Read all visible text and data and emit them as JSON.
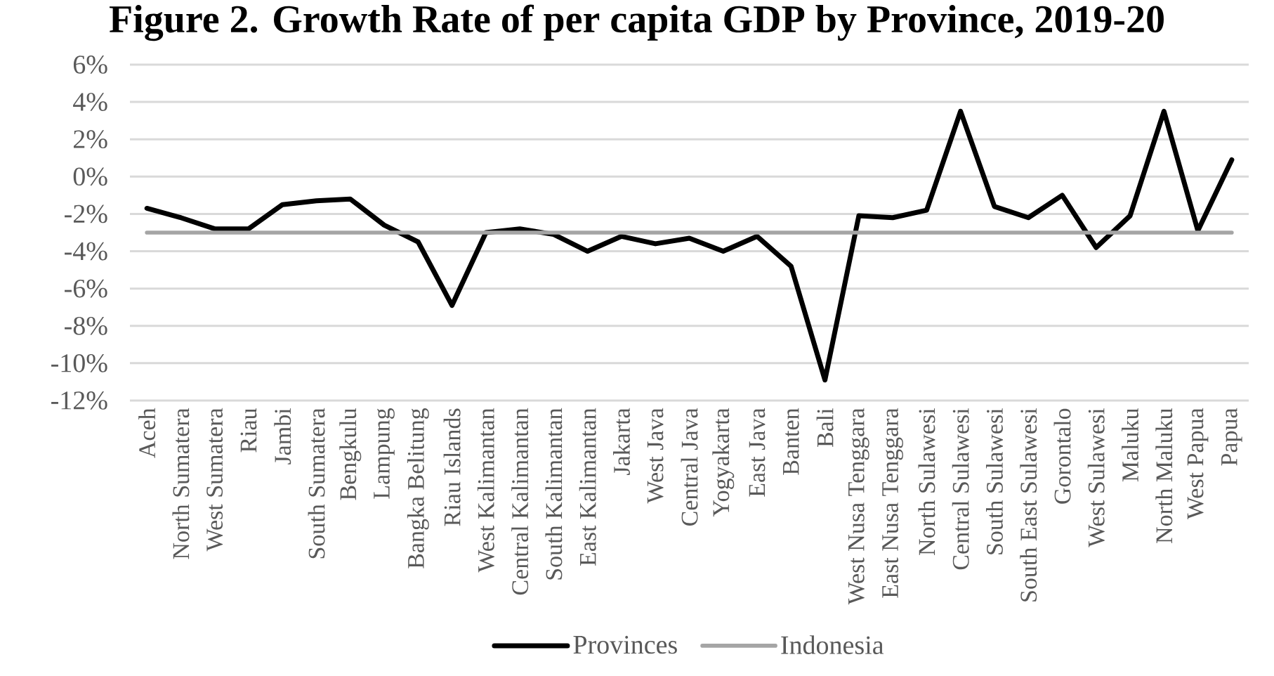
{
  "chart_data": {
    "type": "line",
    "title": "Figure 2. Growth Rate of per capita GDP by Province, 2019-20",
    "categories": [
      "Aceh",
      "North Sumatera",
      "West Sumatera",
      "Riau",
      "Jambi",
      "South Sumatera",
      "Bengkulu",
      "Lampung",
      "Bangka Belitung",
      "Riau Islands",
      "West Kalimantan",
      "Central Kalimantan",
      "South Kalimantan",
      "East Kalimantan",
      "Jakarta",
      "West Java",
      "Central Java",
      "Yogyakarta",
      "East Java",
      "Banten",
      "Bali",
      "West Nusa Tenggara",
      "East Nusa Tenggara",
      "North Sulawesi",
      "Central Sulawesi",
      "South Sulawesi",
      "South East Sulawesi",
      "Gorontalo",
      "West Sulawesi",
      "Maluku",
      "North Maluku",
      "West Papua",
      "Papua"
    ],
    "series": [
      {
        "name": "Provinces",
        "color": "#000000",
        "values": [
          -1.7,
          -2.2,
          -2.8,
          -2.8,
          -1.5,
          -1.3,
          -1.2,
          -2.6,
          -3.5,
          -6.9,
          -3.0,
          -2.8,
          -3.1,
          -4.0,
          -3.2,
          -3.6,
          -3.3,
          -4.0,
          -3.2,
          -4.8,
          -10.9,
          -2.1,
          -2.2,
          -1.8,
          3.5,
          -1.6,
          -2.2,
          -1.0,
          -3.8,
          -2.1,
          3.5,
          -2.9,
          0.9
        ]
      },
      {
        "name": "Indonesia",
        "color": "#a5a5a5",
        "values": [
          -3.0,
          -3.0,
          -3.0,
          -3.0,
          -3.0,
          -3.0,
          -3.0,
          -3.0,
          -3.0,
          -3.0,
          -3.0,
          -3.0,
          -3.0,
          -3.0,
          -3.0,
          -3.0,
          -3.0,
          -3.0,
          -3.0,
          -3.0,
          -3.0,
          -3.0,
          -3.0,
          -3.0,
          -3.0,
          -3.0,
          -3.0,
          -3.0,
          -3.0,
          -3.0,
          -3.0,
          -3.0,
          -3.0
        ]
      }
    ],
    "ylim": [
      -12,
      6
    ],
    "yticks": [
      {
        "value": -12,
        "label": "-12%"
      },
      {
        "value": -10,
        "label": "-10%"
      },
      {
        "value": -8,
        "label": "-8%"
      },
      {
        "value": -6,
        "label": "-6%"
      },
      {
        "value": -4,
        "label": "-4%"
      },
      {
        "value": -2,
        "label": "-2%"
      },
      {
        "value": 0,
        "label": "0%"
      },
      {
        "value": 2,
        "label": "2%"
      },
      {
        "value": 4,
        "label": "4%"
      },
      {
        "value": 6,
        "label": "6%"
      }
    ],
    "grid": "y",
    "legend": "bottom"
  }
}
